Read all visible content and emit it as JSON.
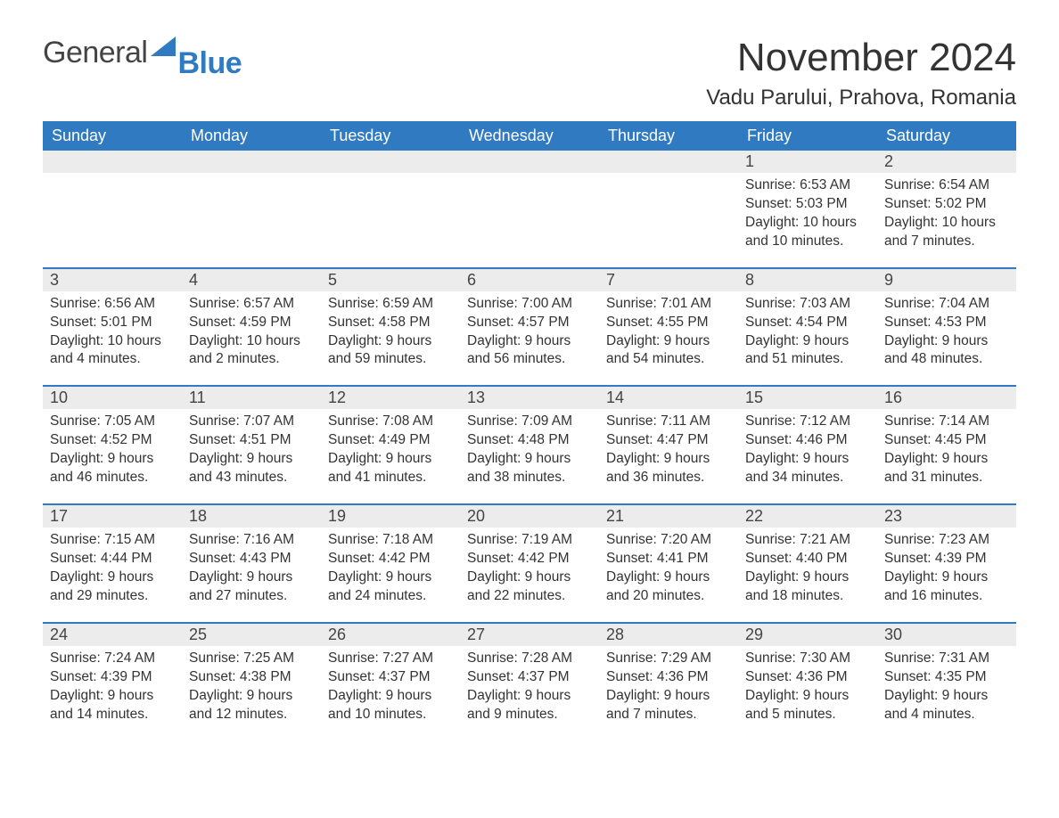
{
  "brand": {
    "part1": "General",
    "part2": "Blue"
  },
  "title": "November 2024",
  "location": "Vadu Parului, Prahova, Romania",
  "colors": {
    "header_bg": "#2f7ac0",
    "header_text": "#ffffff",
    "divider": "#2f7ac0",
    "daynum_bg": "#ececec",
    "page_bg": "#ffffff",
    "text": "#333333"
  },
  "labels": {
    "sunrise": "Sunrise",
    "sunset": "Sunset",
    "daylight": "Daylight"
  },
  "weekdays": [
    "Sunday",
    "Monday",
    "Tuesday",
    "Wednesday",
    "Thursday",
    "Friday",
    "Saturday"
  ],
  "weeks": [
    [
      {
        "blank": true
      },
      {
        "blank": true
      },
      {
        "blank": true
      },
      {
        "blank": true
      },
      {
        "blank": true
      },
      {
        "day": 1,
        "sunrise": "6:53 AM",
        "sunset": "5:03 PM",
        "daylight": "10 hours and 10 minutes."
      },
      {
        "day": 2,
        "sunrise": "6:54 AM",
        "sunset": "5:02 PM",
        "daylight": "10 hours and 7 minutes."
      }
    ],
    [
      {
        "day": 3,
        "sunrise": "6:56 AM",
        "sunset": "5:01 PM",
        "daylight": "10 hours and 4 minutes."
      },
      {
        "day": 4,
        "sunrise": "6:57 AM",
        "sunset": "4:59 PM",
        "daylight": "10 hours and 2 minutes."
      },
      {
        "day": 5,
        "sunrise": "6:59 AM",
        "sunset": "4:58 PM",
        "daylight": "9 hours and 59 minutes."
      },
      {
        "day": 6,
        "sunrise": "7:00 AM",
        "sunset": "4:57 PM",
        "daylight": "9 hours and 56 minutes."
      },
      {
        "day": 7,
        "sunrise": "7:01 AM",
        "sunset": "4:55 PM",
        "daylight": "9 hours and 54 minutes."
      },
      {
        "day": 8,
        "sunrise": "7:03 AM",
        "sunset": "4:54 PM",
        "daylight": "9 hours and 51 minutes."
      },
      {
        "day": 9,
        "sunrise": "7:04 AM",
        "sunset": "4:53 PM",
        "daylight": "9 hours and 48 minutes."
      }
    ],
    [
      {
        "day": 10,
        "sunrise": "7:05 AM",
        "sunset": "4:52 PM",
        "daylight": "9 hours and 46 minutes."
      },
      {
        "day": 11,
        "sunrise": "7:07 AM",
        "sunset": "4:51 PM",
        "daylight": "9 hours and 43 minutes."
      },
      {
        "day": 12,
        "sunrise": "7:08 AM",
        "sunset": "4:49 PM",
        "daylight": "9 hours and 41 minutes."
      },
      {
        "day": 13,
        "sunrise": "7:09 AM",
        "sunset": "4:48 PM",
        "daylight": "9 hours and 38 minutes."
      },
      {
        "day": 14,
        "sunrise": "7:11 AM",
        "sunset": "4:47 PM",
        "daylight": "9 hours and 36 minutes."
      },
      {
        "day": 15,
        "sunrise": "7:12 AM",
        "sunset": "4:46 PM",
        "daylight": "9 hours and 34 minutes."
      },
      {
        "day": 16,
        "sunrise": "7:14 AM",
        "sunset": "4:45 PM",
        "daylight": "9 hours and 31 minutes."
      }
    ],
    [
      {
        "day": 17,
        "sunrise": "7:15 AM",
        "sunset": "4:44 PM",
        "daylight": "9 hours and 29 minutes."
      },
      {
        "day": 18,
        "sunrise": "7:16 AM",
        "sunset": "4:43 PM",
        "daylight": "9 hours and 27 minutes."
      },
      {
        "day": 19,
        "sunrise": "7:18 AM",
        "sunset": "4:42 PM",
        "daylight": "9 hours and 24 minutes."
      },
      {
        "day": 20,
        "sunrise": "7:19 AM",
        "sunset": "4:42 PM",
        "daylight": "9 hours and 22 minutes."
      },
      {
        "day": 21,
        "sunrise": "7:20 AM",
        "sunset": "4:41 PM",
        "daylight": "9 hours and 20 minutes."
      },
      {
        "day": 22,
        "sunrise": "7:21 AM",
        "sunset": "4:40 PM",
        "daylight": "9 hours and 18 minutes."
      },
      {
        "day": 23,
        "sunrise": "7:23 AM",
        "sunset": "4:39 PM",
        "daylight": "9 hours and 16 minutes."
      }
    ],
    [
      {
        "day": 24,
        "sunrise": "7:24 AM",
        "sunset": "4:39 PM",
        "daylight": "9 hours and 14 minutes."
      },
      {
        "day": 25,
        "sunrise": "7:25 AM",
        "sunset": "4:38 PM",
        "daylight": "9 hours and 12 minutes."
      },
      {
        "day": 26,
        "sunrise": "7:27 AM",
        "sunset": "4:37 PM",
        "daylight": "9 hours and 10 minutes."
      },
      {
        "day": 27,
        "sunrise": "7:28 AM",
        "sunset": "4:37 PM",
        "daylight": "9 hours and 9 minutes."
      },
      {
        "day": 28,
        "sunrise": "7:29 AM",
        "sunset": "4:36 PM",
        "daylight": "9 hours and 7 minutes."
      },
      {
        "day": 29,
        "sunrise": "7:30 AM",
        "sunset": "4:36 PM",
        "daylight": "9 hours and 5 minutes."
      },
      {
        "day": 30,
        "sunrise": "7:31 AM",
        "sunset": "4:35 PM",
        "daylight": "9 hours and 4 minutes."
      }
    ]
  ]
}
